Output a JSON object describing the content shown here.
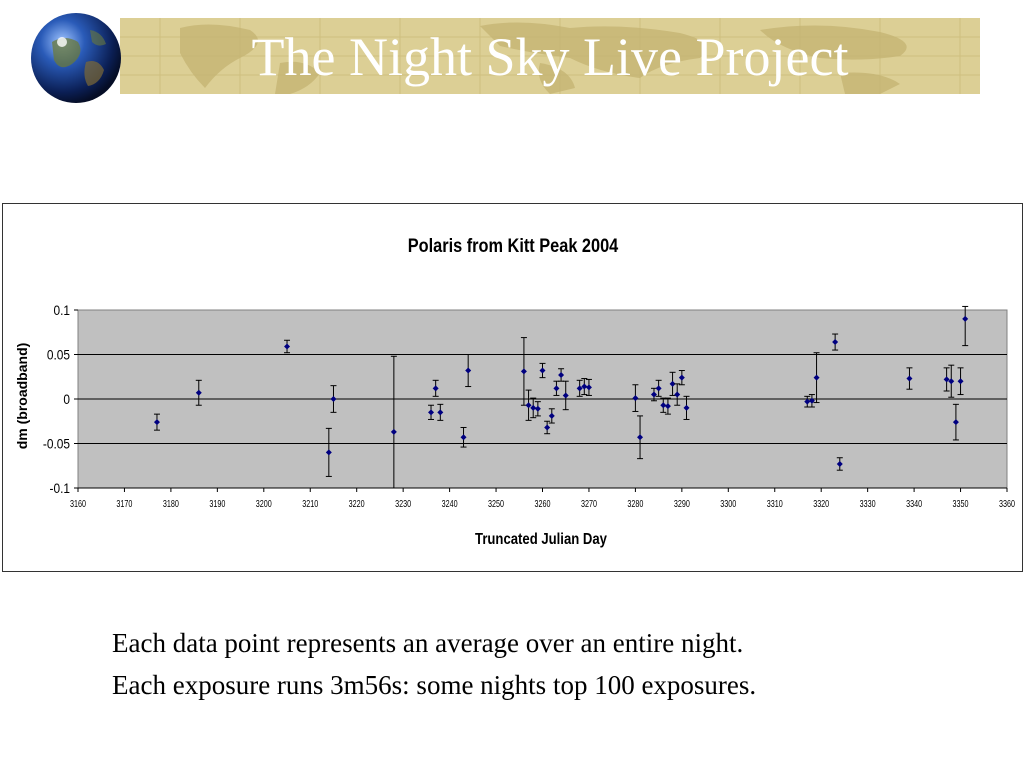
{
  "page": {
    "title": "The Night Sky Live Project",
    "caption_lines": [
      "Each data point represents an average over an entire night.",
      "Each exposure runs 3m56s: some nights top 100 exposures."
    ]
  },
  "chart_data": {
    "type": "scatter",
    "title": "Polaris from Kitt Peak 2004",
    "xlabel": "Truncated Julian Day",
    "ylabel": "dm (broadband)",
    "xlim": [
      3160,
      3360
    ],
    "ylim": [
      -0.1,
      0.1
    ],
    "x_ticks": [
      3160,
      3170,
      3180,
      3190,
      3200,
      3210,
      3220,
      3230,
      3240,
      3250,
      3260,
      3270,
      3280,
      3290,
      3300,
      3310,
      3320,
      3330,
      3340,
      3350,
      3360
    ],
    "y_ticks": [
      -0.1,
      -0.05,
      0,
      0.05,
      0.1
    ],
    "y_tick_labels": [
      "-0.1",
      "-0.05",
      "0",
      "0.05",
      "0.1"
    ],
    "grid": "horizontal",
    "colors": {
      "plot_background": "#c0c0c0",
      "marker": "#000080",
      "error_bar": "#000000"
    },
    "points": [
      {
        "x": 3177,
        "y": -0.026,
        "err": 0.009
      },
      {
        "x": 3186,
        "y": 0.007,
        "err": 0.014
      },
      {
        "x": 3205,
        "y": 0.059,
        "err": 0.007
      },
      {
        "x": 3214,
        "y": -0.06,
        "err": 0.027
      },
      {
        "x": 3215,
        "y": 0.0,
        "err": 0.015
      },
      {
        "x": 3228,
        "y": -0.037,
        "err": 0.085
      },
      {
        "x": 3236,
        "y": -0.015,
        "err": 0.008
      },
      {
        "x": 3237,
        "y": 0.012,
        "err": 0.009
      },
      {
        "x": 3238,
        "y": -0.015,
        "err": 0.009
      },
      {
        "x": 3243,
        "y": -0.043,
        "err": 0.011
      },
      {
        "x": 3244,
        "y": 0.032,
        "err": 0.018
      },
      {
        "x": 3256,
        "y": 0.031,
        "err": 0.038
      },
      {
        "x": 3257,
        "y": -0.007,
        "err": 0.017
      },
      {
        "x": 3258,
        "y": -0.01,
        "err": 0.011
      },
      {
        "x": 3259,
        "y": -0.011,
        "err": 0.008
      },
      {
        "x": 3260,
        "y": 0.032,
        "err": 0.008
      },
      {
        "x": 3261,
        "y": -0.032,
        "err": 0.007
      },
      {
        "x": 3262,
        "y": -0.019,
        "err": 0.008
      },
      {
        "x": 3263,
        "y": 0.012,
        "err": 0.008
      },
      {
        "x": 3264,
        "y": 0.027,
        "err": 0.007
      },
      {
        "x": 3265,
        "y": 0.004,
        "err": 0.016
      },
      {
        "x": 3268,
        "y": 0.012,
        "err": 0.009
      },
      {
        "x": 3269,
        "y": 0.014,
        "err": 0.009
      },
      {
        "x": 3270,
        "y": 0.013,
        "err": 0.009
      },
      {
        "x": 3280,
        "y": 0.001,
        "err": 0.015
      },
      {
        "x": 3281,
        "y": -0.043,
        "err": 0.024
      },
      {
        "x": 3284,
        "y": 0.005,
        "err": 0.007
      },
      {
        "x": 3285,
        "y": 0.012,
        "err": 0.009
      },
      {
        "x": 3286,
        "y": -0.007,
        "err": 0.008
      },
      {
        "x": 3287,
        "y": -0.008,
        "err": 0.009
      },
      {
        "x": 3288,
        "y": 0.017,
        "err": 0.013
      },
      {
        "x": 3289,
        "y": 0.005,
        "err": 0.012
      },
      {
        "x": 3290,
        "y": 0.024,
        "err": 0.008
      },
      {
        "x": 3291,
        "y": -0.01,
        "err": 0.013
      },
      {
        "x": 3317,
        "y": -0.003,
        "err": 0.006
      },
      {
        "x": 3318,
        "y": -0.002,
        "err": 0.007
      },
      {
        "x": 3319,
        "y": 0.024,
        "err": 0.028
      },
      {
        "x": 3323,
        "y": 0.064,
        "err": 0.009
      },
      {
        "x": 3324,
        "y": -0.073,
        "err": 0.007
      },
      {
        "x": 3339,
        "y": 0.023,
        "err": 0.012
      },
      {
        "x": 3347,
        "y": 0.022,
        "err": 0.013
      },
      {
        "x": 3348,
        "y": 0.02,
        "err": 0.018
      },
      {
        "x": 3349,
        "y": -0.026,
        "err": 0.02
      },
      {
        "x": 3350,
        "y": 0.02,
        "err": 0.015
      },
      {
        "x": 3351,
        "y": 0.09,
        "err": 0.03
      }
    ]
  }
}
